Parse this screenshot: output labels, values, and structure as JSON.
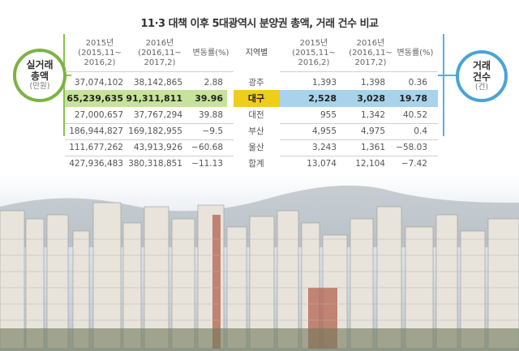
{
  "title": "11·3 대책 이후 5대광역시 분양권 총액, 거래 건수 비교",
  "left_label": {
    "title": "실거래\n총액",
    "unit": "(만원)"
  },
  "right_label": {
    "title": "거래\n건수",
    "unit": "(건)"
  },
  "columns": {
    "amount_2015": "2015년\n(2015,11~\n2016,2)",
    "amount_2016": "2016년\n(2016,11~\n2017,2)",
    "amount_change": "변동률(%)",
    "region": "지역별",
    "count_2015": "2015년\n(2015,11~\n2016,2)",
    "count_2016": "2016년\n(2016,11~\n2017,2)",
    "count_change": "변동률(%)"
  },
  "rows": [
    {
      "region": "광주",
      "amount_2015": "37,074,102",
      "amount_2016": "38,142,865",
      "amount_change": "2.88",
      "count_2015": "1,393",
      "count_2016": "1,398",
      "count_change": "0.36"
    },
    {
      "region": "대구",
      "amount_2015": "65,239,635",
      "amount_2016": "91,311,811",
      "amount_change": "39.96",
      "count_2015": "2,528",
      "count_2016": "3,028",
      "count_change": "19.78"
    },
    {
      "region": "대전",
      "amount_2015": "27,000,657",
      "amount_2016": "37,767,294",
      "amount_change": "39.88",
      "count_2015": "955",
      "count_2016": "1,342",
      "count_change": "40.52"
    },
    {
      "region": "부산",
      "amount_2015": "186,944,827",
      "amount_2016": "169,182,955",
      "amount_change": "−9.5",
      "count_2015": "4,955",
      "count_2016": "4,975",
      "count_change": "0.4"
    },
    {
      "region": "울산",
      "amount_2015": "111,677,262",
      "amount_2016": "43,913,926",
      "amount_change": "−60.68",
      "count_2015": "3,243",
      "count_2016": "1,361",
      "count_change": "−58.03"
    },
    {
      "region": "합계",
      "amount_2015": "427,936,483",
      "amount_2016": "380,318,851",
      "amount_change": "−11.13",
      "count_2015": "13,074",
      "count_2016": "12,104",
      "count_change": "−7.42"
    }
  ],
  "highlight_row": "대구",
  "colors": {
    "amount_band": "#c7e39b",
    "count_band": "#a8d3ea",
    "region_band": "#f1cd1b",
    "left_accent": "#7cb342",
    "right_accent": "#4aa3d6"
  },
  "background_photo": "apartment-skyline"
}
